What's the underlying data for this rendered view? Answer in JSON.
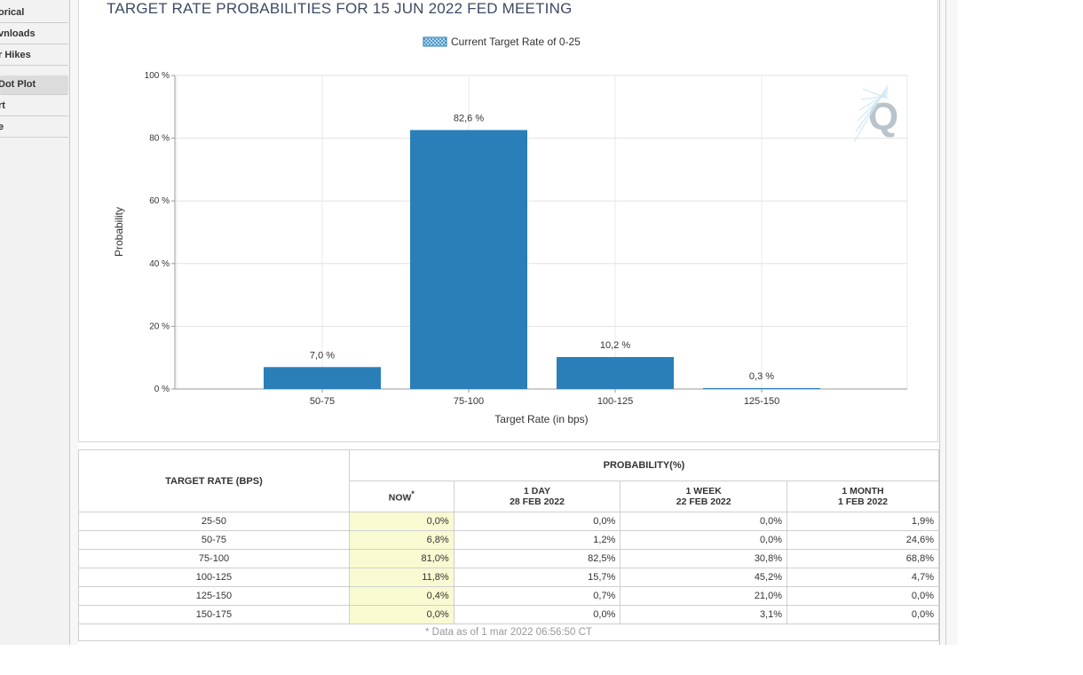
{
  "sidebar": {
    "items": [
      {
        "label": "orical",
        "active": false
      },
      {
        "label": "vnloads",
        "active": false
      },
      {
        "label": "r Hikes",
        "active": false
      },
      {
        "label": "Dot Plot",
        "active": true
      },
      {
        "label": "rt",
        "active": false
      },
      {
        "label": "e",
        "active": false
      }
    ]
  },
  "chart_data": {
    "type": "bar",
    "title": "TARGET RATE PROBABILITIES FOR 15 JUN 2022 FED MEETING",
    "legend": "Current Target Rate of 0-25",
    "legend_position": "top-center",
    "categories": [
      "50-75",
      "75-100",
      "100-125",
      "125-150"
    ],
    "values": [
      7.0,
      82.6,
      10.2,
      0.3
    ],
    "value_labels": [
      "7,0 %",
      "82,6 %",
      "10,2 %",
      "0,3 %"
    ],
    "xlabel": "Target Rate (in bps)",
    "ylabel": "Probability",
    "ylim": [
      0,
      100
    ],
    "yticks": [
      "0 %",
      "20 %",
      "40 %",
      "60 %",
      "80 %",
      "100 %"
    ],
    "ytick_values": [
      0,
      20,
      40,
      60,
      80,
      100
    ],
    "grid": true,
    "bar_color": "#2a7fb8",
    "watermark": "Q"
  },
  "table": {
    "col_rate": "TARGET RATE (BPS)",
    "col_prob": "PROBABILITY(%)",
    "sub_headers": [
      {
        "line1": "NOW",
        "line2": "",
        "star": "*"
      },
      {
        "line1": "1 DAY",
        "line2": "28 FEB 2022",
        "star": ""
      },
      {
        "line1": "1 WEEK",
        "line2": "22 FEB 2022",
        "star": ""
      },
      {
        "line1": "1 MONTH",
        "line2": "1 FEB 2022",
        "star": ""
      }
    ],
    "rows": [
      {
        "rate": "25-50",
        "now": "0,0%",
        "day": "0,0%",
        "week": "0,0%",
        "month": "1,9%"
      },
      {
        "rate": "50-75",
        "now": "6,8%",
        "day": "1,2%",
        "week": "0,0%",
        "month": "24,6%"
      },
      {
        "rate": "75-100",
        "now": "81,0%",
        "day": "82,5%",
        "week": "30,8%",
        "month": "68,8%"
      },
      {
        "rate": "100-125",
        "now": "11,8%",
        "day": "15,7%",
        "week": "45,2%",
        "month": "4,7%"
      },
      {
        "rate": "125-150",
        "now": "0,4%",
        "day": "0,7%",
        "week": "21,0%",
        "month": "0,0%"
      },
      {
        "rate": "150-175",
        "now": "0,0%",
        "day": "0,0%",
        "week": "3,1%",
        "month": "0,0%"
      }
    ],
    "footnote": "* Data as of 1 mar 2022 06:56:50 CT"
  }
}
